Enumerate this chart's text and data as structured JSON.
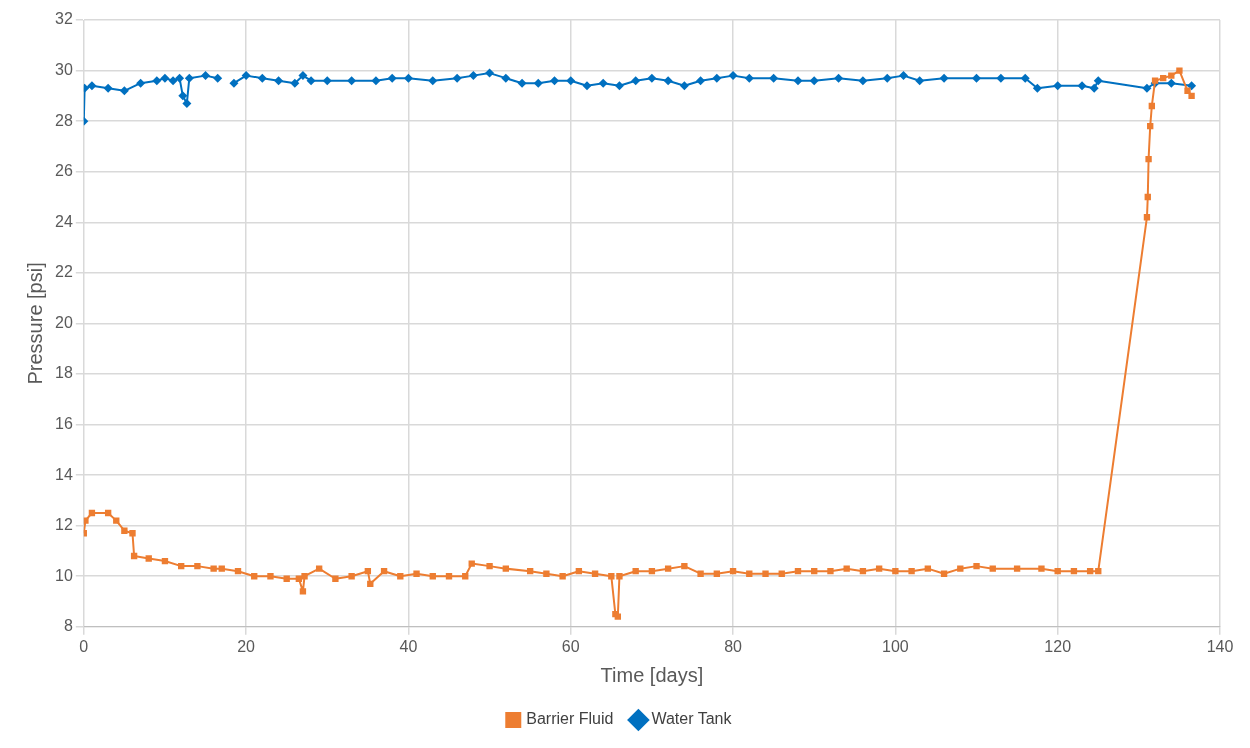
{
  "chart_data": {
    "type": "line",
    "xlabel": "Time [days]",
    "ylabel": "Pressure [psi]",
    "xlim": [
      0,
      140
    ],
    "xticks": [
      0,
      20,
      40,
      60,
      80,
      100,
      120,
      140
    ],
    "ylim": [
      8,
      32
    ],
    "yticks": [
      8,
      10,
      12,
      14,
      16,
      18,
      20,
      22,
      24,
      26,
      28,
      30,
      32
    ],
    "grid": true,
    "legend": "bottom",
    "line_style": "solid",
    "series": [
      {
        "name": "Barrier Fluid",
        "color": "#ed7d31",
        "marker": "square",
        "x": [
          0,
          0.2,
          1,
          3,
          4,
          5,
          6,
          6.2,
          8,
          10,
          12,
          14,
          16,
          17,
          19,
          21,
          23,
          25,
          26.5,
          27,
          27.2,
          29,
          31,
          33,
          35,
          35.3,
          37,
          39,
          41,
          43,
          45,
          47,
          47.8,
          50,
          52,
          55,
          57,
          59,
          61,
          63,
          65,
          65.5,
          65.8,
          66,
          68,
          70,
          72,
          74,
          76,
          78,
          80,
          82,
          84,
          86,
          88,
          90,
          92,
          94,
          96,
          98,
          100,
          102,
          104,
          106,
          108,
          110,
          112,
          115,
          118,
          120,
          122,
          124,
          125,
          131,
          131.1,
          131.2,
          131.4,
          131.6,
          132,
          133,
          134,
          135,
          136,
          136.5
        ],
        "values": [
          11.7,
          12.2,
          12.5,
          12.5,
          12.2,
          11.8,
          11.7,
          10.8,
          10.7,
          10.6,
          10.4,
          10.4,
          10.3,
          10.3,
          10.2,
          10,
          10,
          9.9,
          9.9,
          9.4,
          10,
          10.3,
          9.9,
          10,
          10.2,
          9.7,
          10.2,
          10,
          10.1,
          10,
          10,
          10,
          10.5,
          10.4,
          10.3,
          10.2,
          10.1,
          10,
          10.2,
          10.1,
          10,
          8.5,
          8.4,
          10,
          10.2,
          10.2,
          10.3,
          10.4,
          10.1,
          10.1,
          10.2,
          10.1,
          10.1,
          10.1,
          10.2,
          10.2,
          10.2,
          10.3,
          10.2,
          10.3,
          10.2,
          10.2,
          10.3,
          10.1,
          10.3,
          10.4,
          10.3,
          10.3,
          10.3,
          10.2,
          10.2,
          10.2,
          10.2,
          24.2,
          25,
          26.5,
          27.8,
          28.6,
          29.6,
          29.7,
          29.8,
          30,
          29.2,
          29
        ]
      },
      {
        "name": "Water Tank",
        "color": "#0070c0",
        "marker": "diamond",
        "x": [
          0,
          0.1,
          1,
          3,
          5,
          7,
          9,
          10,
          11,
          11.8,
          12.2,
          12.7,
          13,
          15,
          16.5,
          17.5,
          18.5,
          20,
          22,
          24,
          26,
          27,
          28,
          30,
          33,
          36,
          38,
          40,
          43,
          46,
          48,
          50,
          52,
          54,
          56,
          58,
          60,
          62,
          64,
          66,
          68,
          70,
          72,
          74,
          76,
          78,
          80,
          82,
          85,
          88,
          90,
          93,
          96,
          99,
          101,
          103,
          106,
          110,
          113,
          116,
          117.5,
          120,
          123,
          124.5,
          125,
          131,
          132,
          134,
          136.5
        ],
        "values": [
          28,
          29.3,
          29.4,
          29.3,
          29.2,
          29.5,
          29.6,
          29.7,
          29.6,
          29.7,
          29,
          28.7,
          29.7,
          29.8,
          29.7,
          null,
          29.5,
          29.8,
          29.7,
          29.6,
          29.5,
          29.8,
          29.6,
          29.6,
          29.6,
          29.6,
          29.7,
          29.7,
          29.6,
          29.7,
          29.8,
          29.9,
          29.7,
          29.5,
          29.5,
          29.6,
          29.6,
          29.4,
          29.5,
          29.4,
          29.6,
          29.7,
          29.6,
          29.4,
          29.6,
          29.7,
          29.8,
          29.7,
          29.7,
          29.6,
          29.6,
          29.7,
          29.6,
          29.7,
          29.8,
          29.6,
          29.7,
          29.7,
          29.7,
          29.7,
          29.3,
          29.4,
          29.4,
          29.3,
          29.6,
          29.3,
          29.5,
          29.5,
          29.4
        ]
      }
    ]
  }
}
